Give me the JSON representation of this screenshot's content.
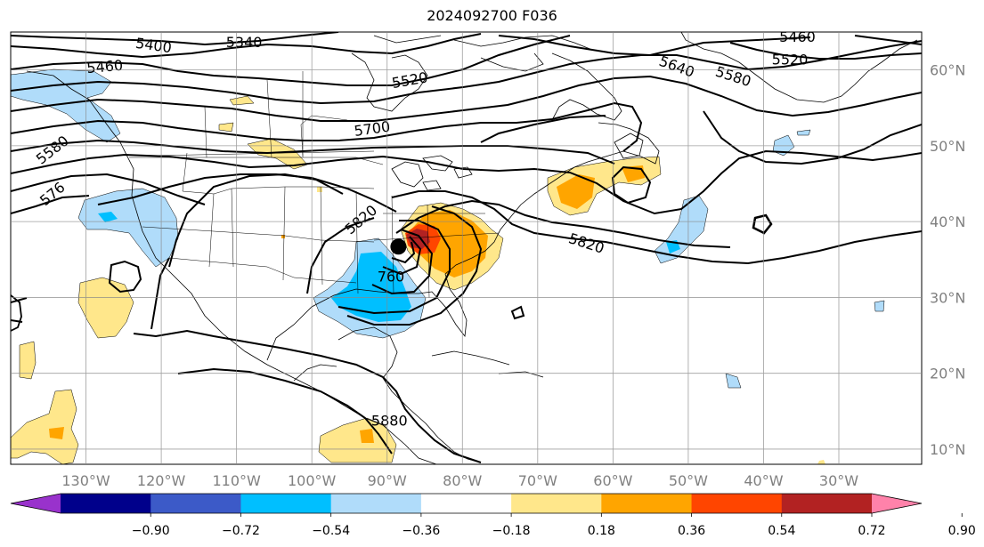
{
  "title": "2024092700 F036",
  "map": {
    "lon_min": -140,
    "lon_max": -19,
    "lat_min": 8,
    "lat_max": 65,
    "lon_ticks": [
      {
        "value": -130,
        "label": "130°W"
      },
      {
        "value": -120,
        "label": "120°W"
      },
      {
        "value": -110,
        "label": "110°W"
      },
      {
        "value": -100,
        "label": "100°W"
      },
      {
        "value": -90,
        "label": "90°W"
      },
      {
        "value": -80,
        "label": "80°W"
      },
      {
        "value": -70,
        "label": "70°W"
      },
      {
        "value": -60,
        "label": "60°W"
      },
      {
        "value": -50,
        "label": "50°W"
      },
      {
        "value": -40,
        "label": "40°W"
      },
      {
        "value": -30,
        "label": "30°W"
      }
    ],
    "lat_ticks": [
      {
        "value": 60,
        "label": "60°N"
      },
      {
        "value": 50,
        "label": "50°N"
      },
      {
        "value": 40,
        "label": "40°N"
      },
      {
        "value": 30,
        "label": "30°N"
      },
      {
        "value": 20,
        "label": "20°N"
      },
      {
        "value": 10,
        "label": "10°N"
      }
    ],
    "gridlines": true,
    "storm_center": {
      "lon": -88.5,
      "lat": 36.7
    },
    "contour_labels": [
      {
        "text": "5400",
        "lon": -121,
        "lat": 63.3,
        "angle": 8
      },
      {
        "text": "5340",
        "lon": -109,
        "lat": 63.7,
        "angle": 0
      },
      {
        "text": "5460",
        "lon": -127.5,
        "lat": 60.5,
        "angle": -5
      },
      {
        "text": "5520",
        "lon": -87,
        "lat": 58.7,
        "angle": -10
      },
      {
        "text": "5700",
        "lon": -92,
        "lat": 52.3,
        "angle": -8
      },
      {
        "text": "5580",
        "lon": -134.5,
        "lat": 49.5,
        "angle": -38
      },
      {
        "text": "576",
        "lon": -134.5,
        "lat": 43.7,
        "angle": -40
      },
      {
        "text": "5820",
        "lon": -93.5,
        "lat": 40.3,
        "angle": -40
      },
      {
        "text": "760",
        "lon": -89.5,
        "lat": 32.8,
        "angle": 0
      },
      {
        "text": "5880",
        "lon": -89.7,
        "lat": 13.8,
        "angle": 0
      },
      {
        "text": "5640",
        "lon": -51.5,
        "lat": 60.5,
        "angle": 20
      },
      {
        "text": "5580",
        "lon": -44,
        "lat": 59.2,
        "angle": 18
      },
      {
        "text": "5460",
        "lon": -35.5,
        "lat": 64.4,
        "angle": 0
      },
      {
        "text": "5520",
        "lon": -36.5,
        "lat": 61.4,
        "angle": 0
      },
      {
        "text": "5820",
        "lon": -63.5,
        "lat": 37.2,
        "angle": 18
      }
    ]
  },
  "colorbar": {
    "ticks": [
      "−0.90",
      "−0.72",
      "−0.54",
      "−0.36",
      "−0.18",
      "0.18",
      "0.36",
      "0.54",
      "0.72",
      "0.90"
    ],
    "colors": [
      "#9932cc",
      "#00008b",
      "#3c5ac8",
      "#00bfff",
      "#b0dcfa",
      "#ffffff",
      "#ffe78b",
      "#ffa500",
      "#ff4500",
      "#b22222",
      "#ff82aa"
    ]
  }
}
